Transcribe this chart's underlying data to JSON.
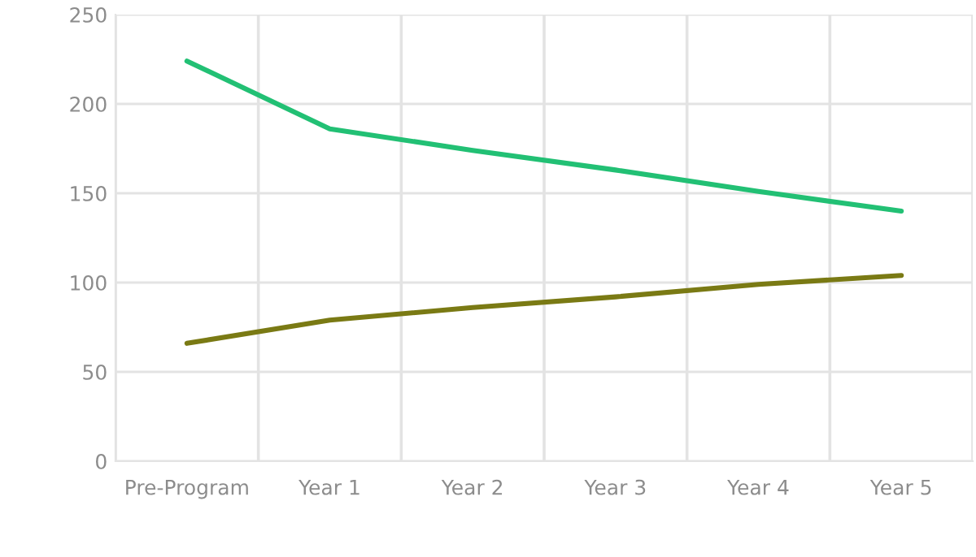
{
  "chart_data": {
    "type": "line",
    "categories": [
      "Pre-Program",
      "Year 1",
      "Year 2",
      "Year 3",
      "Year 4",
      "Year 5"
    ],
    "series": [
      {
        "color": "#22c074",
        "values": [
          224,
          186,
          174,
          163,
          151,
          140
        ]
      },
      {
        "color": "#7a7a14",
        "values": [
          66,
          79,
          86,
          92,
          99,
          104
        ]
      }
    ],
    "ylim": [
      0,
      250
    ],
    "yticks": [
      0,
      50,
      100,
      150,
      200,
      250
    ],
    "grid": true,
    "marker": "none",
    "line_style": "solid"
  }
}
